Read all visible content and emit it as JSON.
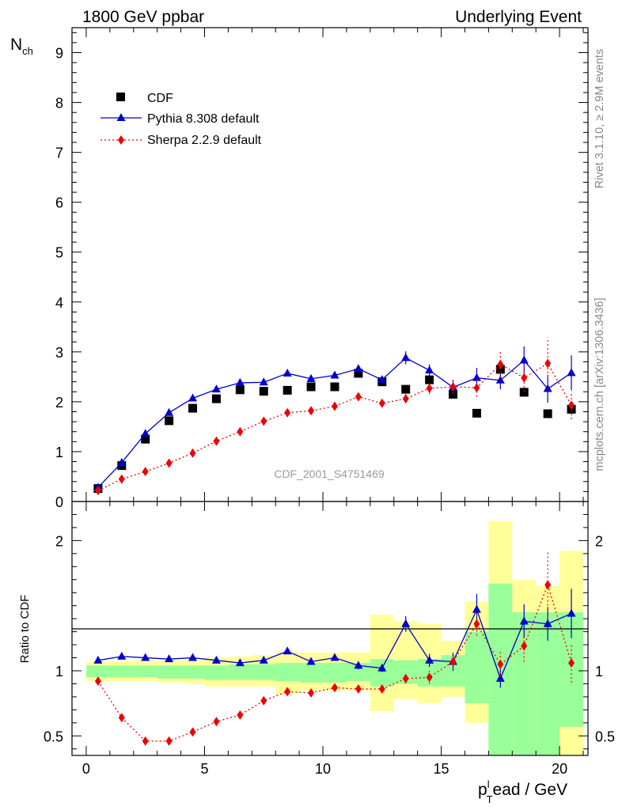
{
  "header": {
    "left_title": "1800 GeV ppbar",
    "right_title": "Underlying Event"
  },
  "side_labels": {
    "rivet": "Rivet 3.1.10, ≥ 2.9M events",
    "mcplots": "mcplots.cern.ch [arXiv:1306.3436]"
  },
  "watermark": "CDF_2001_S4751469",
  "chart_data": {
    "type": "scatter",
    "xlabel": {
      "main": "p",
      "sub": "T",
      "sup": "l",
      "rest": "ead / GeV"
    },
    "main_panel": {
      "ylabel": {
        "main": "N",
        "sub": "ch"
      },
      "xlim": [
        -0.6,
        21.2
      ],
      "ylim": [
        0,
        9.5
      ],
      "yticks": [
        0,
        1,
        2,
        3,
        4,
        5,
        6,
        7,
        8,
        9
      ],
      "xticks": [
        0,
        5,
        10,
        15,
        20
      ]
    },
    "ratio_panel": {
      "ylabel": "Ratio to CDF",
      "ylim": [
        0.35,
        2.3
      ],
      "yticks": [
        0.5,
        1,
        2
      ],
      "ytick_labels": [
        "0.5",
        "1",
        "2"
      ]
    },
    "x": [
      0.5,
      1.5,
      2.5,
      3.5,
      4.5,
      5.5,
      6.5,
      7.5,
      8.5,
      9.5,
      10.5,
      11.5,
      12.5,
      13.5,
      14.5,
      15.5,
      16.5,
      17.5,
      18.5,
      19.5,
      20.5
    ],
    "series": [
      {
        "name": "CDF",
        "style": "data",
        "color": "#000000",
        "values": [
          0.26,
          0.72,
          1.25,
          1.62,
          1.87,
          2.06,
          2.24,
          2.21,
          2.23,
          2.3,
          2.3,
          2.57,
          2.4,
          2.25,
          2.44,
          2.15,
          1.77,
          2.65,
          2.19,
          1.76,
          1.85
        ],
        "ratio_band_green": [
          [
            0.95,
            1.04
          ],
          [
            0.95,
            1.04
          ],
          [
            0.95,
            1.04
          ],
          [
            0.94,
            1.04
          ],
          [
            0.94,
            1.04
          ],
          [
            0.93,
            1.04
          ],
          [
            0.93,
            1.05
          ],
          [
            0.93,
            1.05
          ],
          [
            0.92,
            1.06
          ],
          [
            0.91,
            1.06
          ],
          [
            0.91,
            1.06
          ],
          [
            0.92,
            1.06
          ],
          [
            0.88,
            1.09
          ],
          [
            0.9,
            1.08
          ],
          [
            0.88,
            1.09
          ],
          [
            0.88,
            1.12
          ],
          [
            0.75,
            1.3
          ],
          [
            0.35,
            1.67
          ],
          [
            0.35,
            1.45
          ],
          [
            0.35,
            1.45
          ],
          [
            0.57,
            1.45
          ]
        ],
        "ratio_band_yellow": [
          [
            0.92,
            1.07
          ],
          [
            0.92,
            1.07
          ],
          [
            0.92,
            1.08
          ],
          [
            0.91,
            1.08
          ],
          [
            0.9,
            1.08
          ],
          [
            0.88,
            1.1
          ],
          [
            0.88,
            1.11
          ],
          [
            0.88,
            1.12
          ],
          [
            0.82,
            1.14
          ],
          [
            0.85,
            1.14
          ],
          [
            0.85,
            1.14
          ],
          [
            0.85,
            1.14
          ],
          [
            0.69,
            1.43
          ],
          [
            0.78,
            1.38
          ],
          [
            0.75,
            1.36
          ],
          [
            0.8,
            1.23
          ],
          [
            0.6,
            1.53
          ],
          [
            0.35,
            2.15
          ],
          [
            0.35,
            1.7
          ],
          [
            0.35,
            1.65
          ],
          [
            0.35,
            1.92
          ]
        ]
      },
      {
        "name": "Pythia 8.308 default",
        "style": "line-triangle",
        "color": "#0000cc",
        "values": [
          0.28,
          0.78,
          1.36,
          1.78,
          2.07,
          2.25,
          2.38,
          2.39,
          2.57,
          2.46,
          2.53,
          2.66,
          2.44,
          2.88,
          2.63,
          2.29,
          2.48,
          2.43,
          2.83,
          2.26,
          2.58
        ],
        "errors": [
          0.02,
          0.02,
          0.02,
          0.02,
          0.02,
          0.02,
          0.03,
          0.03,
          0.04,
          0.04,
          0.05,
          0.06,
          0.07,
          0.13,
          0.12,
          0.15,
          0.2,
          0.18,
          0.28,
          0.28,
          0.35
        ],
        "ratio": [
          1.08,
          1.11,
          1.1,
          1.09,
          1.1,
          1.08,
          1.06,
          1.08,
          1.15,
          1.07,
          1.1,
          1.04,
          1.02,
          1.36,
          1.08,
          1.07,
          1.47,
          0.94,
          1.38,
          1.36,
          1.44
        ],
        "ratio_errors": [
          0.01,
          0.01,
          0.01,
          0.01,
          0.01,
          0.01,
          0.01,
          0.01,
          0.02,
          0.02,
          0.02,
          0.03,
          0.03,
          0.06,
          0.05,
          0.07,
          0.12,
          0.07,
          0.13,
          0.13,
          0.19
        ]
      },
      {
        "name": "Sherpa 2.2.9 default",
        "style": "dotted-diamond",
        "color": "#ee0000",
        "values": [
          0.22,
          0.45,
          0.6,
          0.77,
          0.97,
          1.21,
          1.4,
          1.61,
          1.78,
          1.82,
          1.91,
          2.1,
          1.97,
          2.06,
          2.27,
          2.3,
          2.28,
          2.75,
          2.48,
          2.77,
          1.93
        ],
        "errors": [
          0.01,
          0.01,
          0.01,
          0.02,
          0.02,
          0.02,
          0.03,
          0.03,
          0.04,
          0.04,
          0.05,
          0.06,
          0.07,
          0.09,
          0.12,
          0.14,
          0.18,
          0.26,
          0.28,
          0.52,
          0.28
        ],
        "ratio": [
          0.92,
          0.64,
          0.46,
          0.46,
          0.53,
          0.61,
          0.66,
          0.77,
          0.84,
          0.83,
          0.87,
          0.86,
          0.86,
          0.94,
          0.95,
          1.07,
          1.36,
          1.05,
          1.19,
          1.66,
          1.06
        ],
        "ratio_errors": [
          0.01,
          0.01,
          0.01,
          0.01,
          0.01,
          0.01,
          0.01,
          0.01,
          0.02,
          0.02,
          0.02,
          0.02,
          0.03,
          0.04,
          0.05,
          0.06,
          0.09,
          0.1,
          0.12,
          0.25,
          0.15
        ]
      }
    ]
  }
}
